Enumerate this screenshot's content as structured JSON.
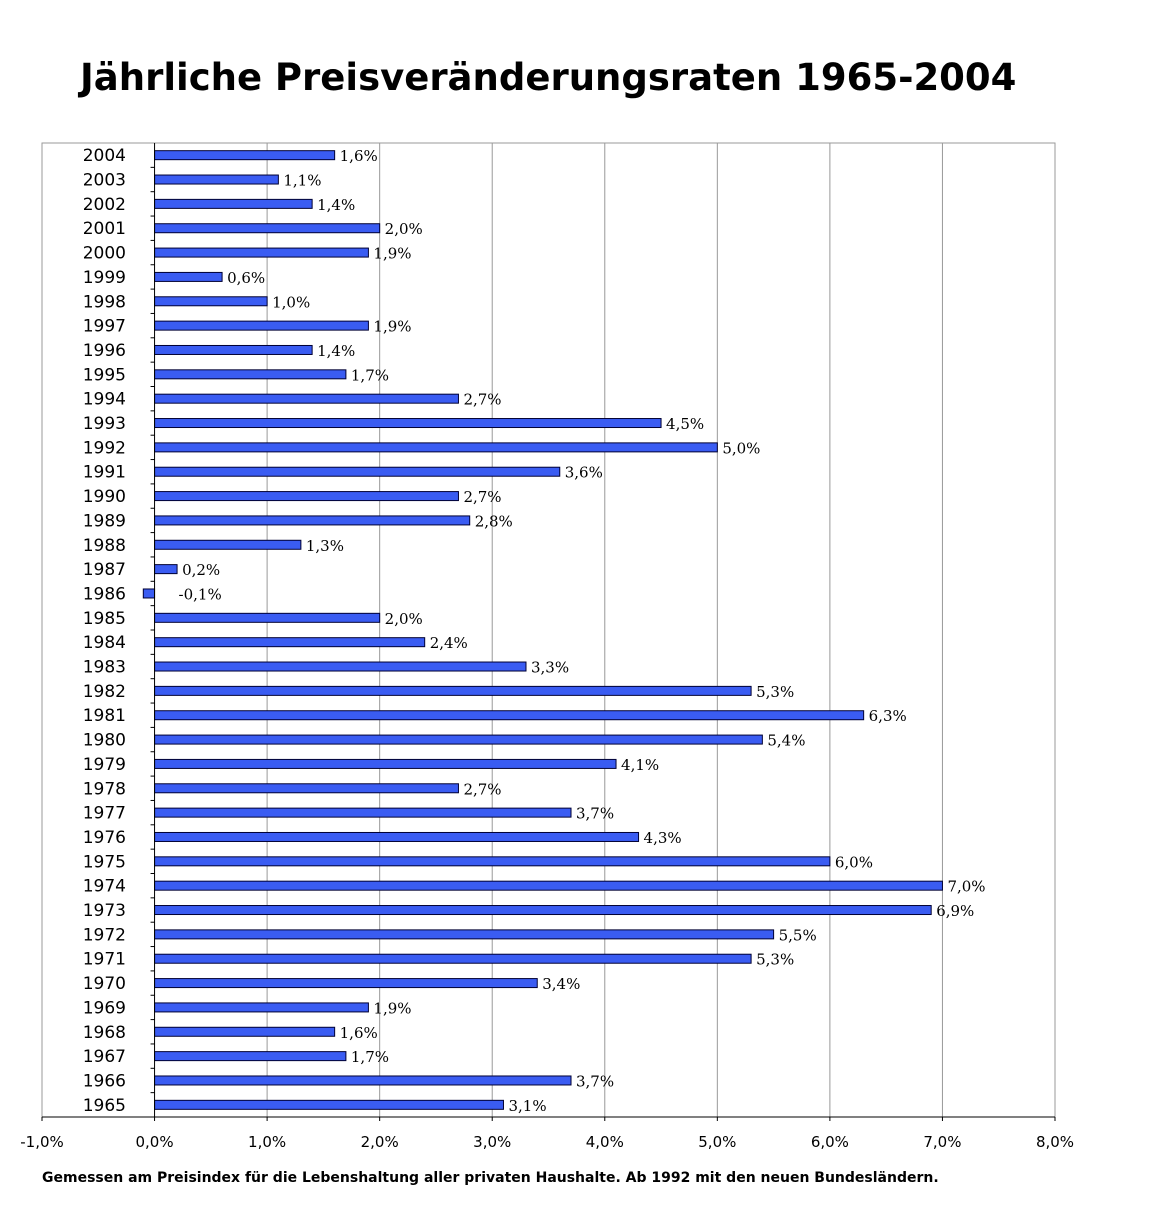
{
  "chart_data": {
    "type": "bar",
    "orientation": "horizontal",
    "title": "Jährliche Preisveränderungsraten 1965-2004",
    "footnote": "Gemessen am Preisindex für die Lebenshaltung aller privaten Haushalte. Ab 1992 mit den neuen Bundesländern.",
    "xlim": [
      -0.01,
      0.08
    ],
    "x_ticks": [
      -0.01,
      0.0,
      0.01,
      0.02,
      0.03,
      0.04,
      0.05,
      0.06,
      0.07,
      0.08
    ],
    "x_tick_labels": [
      "-1,0%",
      "0,0%",
      "1,0%",
      "2,0%",
      "3,0%",
      "4,0%",
      "5,0%",
      "6,0%",
      "7,0%",
      "8,0%"
    ],
    "grid": "vertical",
    "bar_color": "#3a5cf2",
    "categories": [
      "2004",
      "2003",
      "2002",
      "2001",
      "2000",
      "1999",
      "1998",
      "1997",
      "1996",
      "1995",
      "1994",
      "1993",
      "1992",
      "1991",
      "1990",
      "1989",
      "1988",
      "1987",
      "1986",
      "1985",
      "1984",
      "1983",
      "1982",
      "1981",
      "1980",
      "1979",
      "1978",
      "1977",
      "1976",
      "1975",
      "1974",
      "1973",
      "1972",
      "1971",
      "1970",
      "1969",
      "1968",
      "1967",
      "1966",
      "1965"
    ],
    "values": [
      0.016,
      0.011,
      0.014,
      0.02,
      0.019,
      0.006,
      0.01,
      0.019,
      0.014,
      0.017,
      0.027,
      0.045,
      0.05,
      0.036,
      0.027,
      0.028,
      0.013,
      0.002,
      -0.001,
      0.02,
      0.024,
      0.033,
      0.053,
      0.063,
      0.054,
      0.041,
      0.027,
      0.037,
      0.043,
      0.06,
      0.07,
      0.069,
      0.055,
      0.053,
      0.034,
      0.019,
      0.016,
      0.017,
      0.037,
      0.031
    ],
    "value_labels": [
      "1,6%",
      "1,1%",
      "1,4%",
      "2,0%",
      "1,9%",
      "0,6%",
      "1,0%",
      "1,9%",
      "1,4%",
      "1,7%",
      "2,7%",
      "4,5%",
      "5,0%",
      "3,6%",
      "2,7%",
      "2,8%",
      "1,3%",
      "0,2%",
      "-0,1%",
      "2,0%",
      "2,4%",
      "3,3%",
      "5,3%",
      "6,3%",
      "5,4%",
      "4,1%",
      "2,7%",
      "3,7%",
      "4,3%",
      "6,0%",
      "7,0%",
      "6,9%",
      "5,5%",
      "5,3%",
      "3,4%",
      "1,9%",
      "1,6%",
      "1,7%",
      "3,7%",
      "3,1%"
    ]
  }
}
